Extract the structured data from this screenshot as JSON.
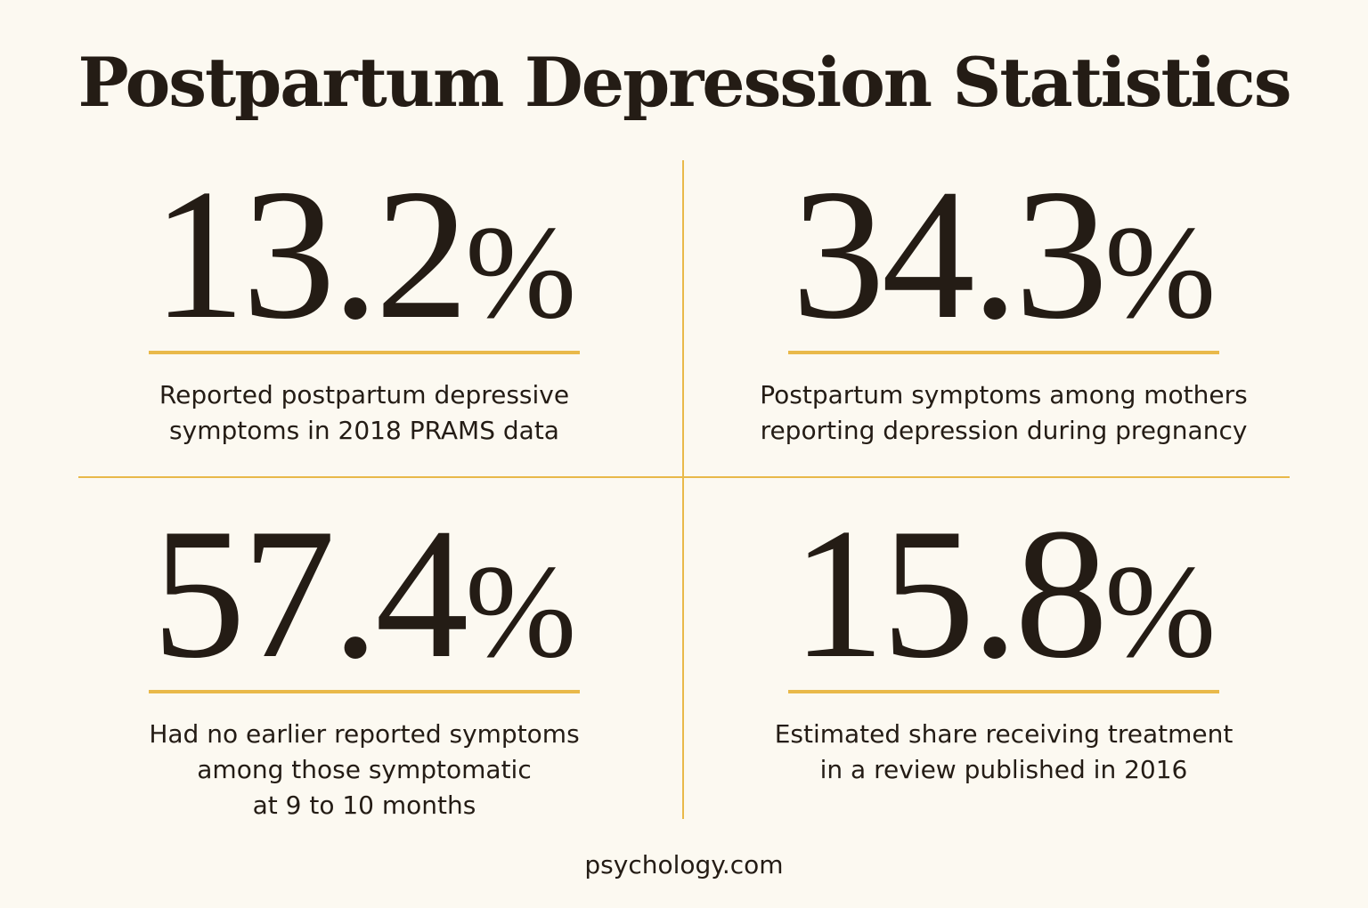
{
  "title": "Postpartum Depression Statistics",
  "stats": [
    {
      "number": "13.2",
      "percent_sign": "%",
      "caption": "Reported postpartum depressive\nsymptoms in 2018 PRAMS data"
    },
    {
      "number": "34.3",
      "percent_sign": "%",
      "caption": "Postpartum symptoms among mothers\nreporting depression during pregnancy"
    },
    {
      "number": "57.4",
      "percent_sign": "%",
      "caption": "Had no earlier reported symptoms\namong those symptomatic\nat 9 to 10 months"
    },
    {
      "number": "15.8",
      "percent_sign": "%",
      "caption": "Estimated share receiving treatment\nin a review published in 2016"
    }
  ],
  "footer": "psychology.com",
  "colors": {
    "background": "#fcf9f1",
    "text": "#241c15",
    "accent": "#e9b94a"
  }
}
